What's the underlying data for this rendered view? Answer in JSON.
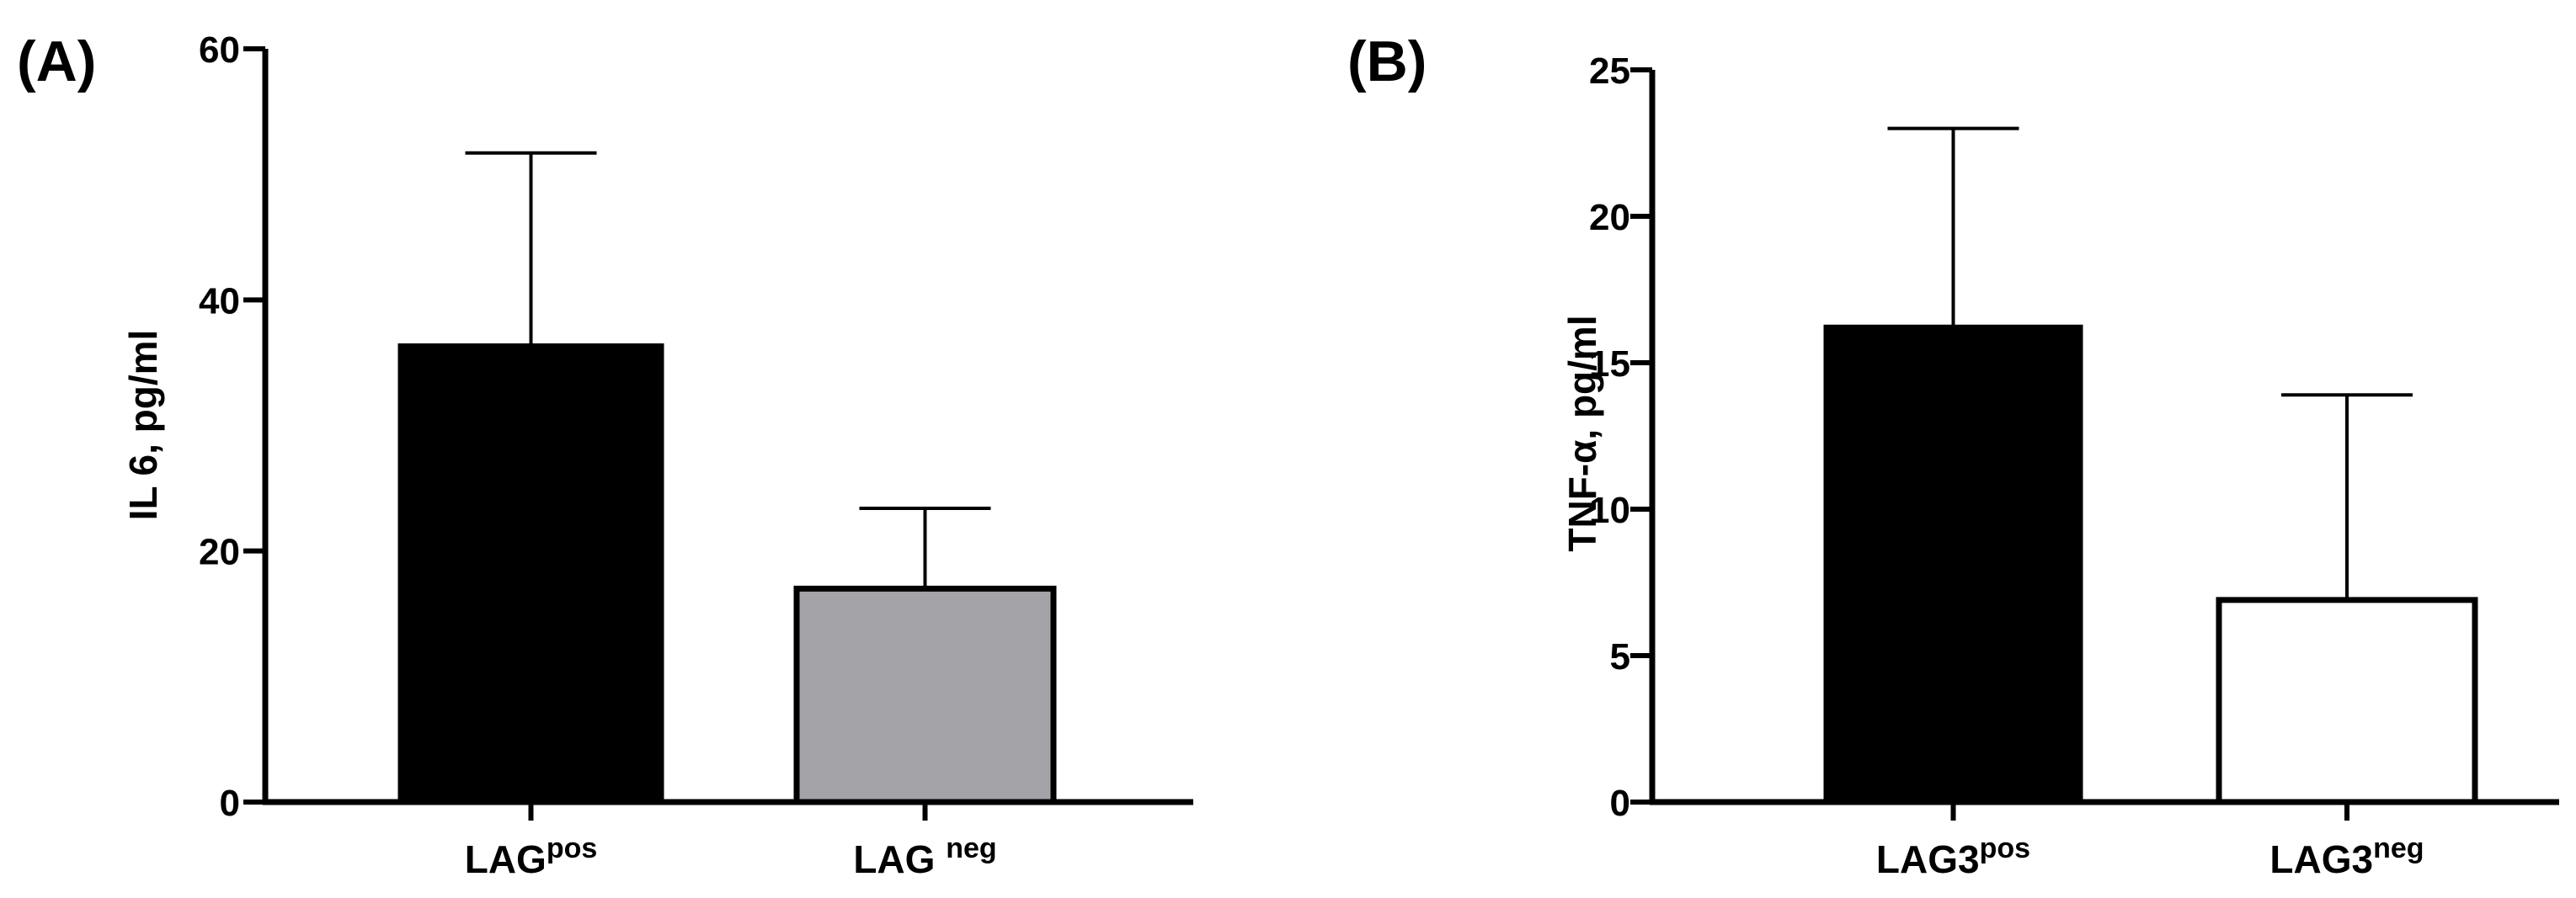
{
  "chart_data": [
    {
      "type": "bar",
      "panel_label": "(A)",
      "categories": [
        {
          "base": "LAG",
          "sup": "pos"
        },
        {
          "base": "LAG ",
          "sup": "neg"
        }
      ],
      "values": [
        36.3,
        17.0
      ],
      "error_upper": [
        51.7,
        23.4
      ],
      "bar_colors": [
        "#000000",
        "#a3a3a8"
      ],
      "ylabel": "IL 6, pg/ml",
      "ylim": [
        0,
        60
      ],
      "yticks": [
        0,
        20,
        40,
        60
      ],
      "grid": false,
      "legend": "none"
    },
    {
      "type": "bar",
      "panel_label": "(B)",
      "categories": [
        {
          "base": "LAG3",
          "sup": "pos"
        },
        {
          "base": "LAG3",
          "sup": "neg"
        }
      ],
      "values": [
        16.2,
        6.9
      ],
      "error_upper": [
        23.0,
        13.9
      ],
      "bar_colors": [
        "#000000",
        "#ffffff"
      ],
      "ylabel": "TNF-α, pg/ml",
      "ylim": [
        0,
        25
      ],
      "yticks": [
        0,
        5,
        10,
        15,
        20,
        25
      ],
      "grid": false,
      "legend": "none"
    }
  ]
}
